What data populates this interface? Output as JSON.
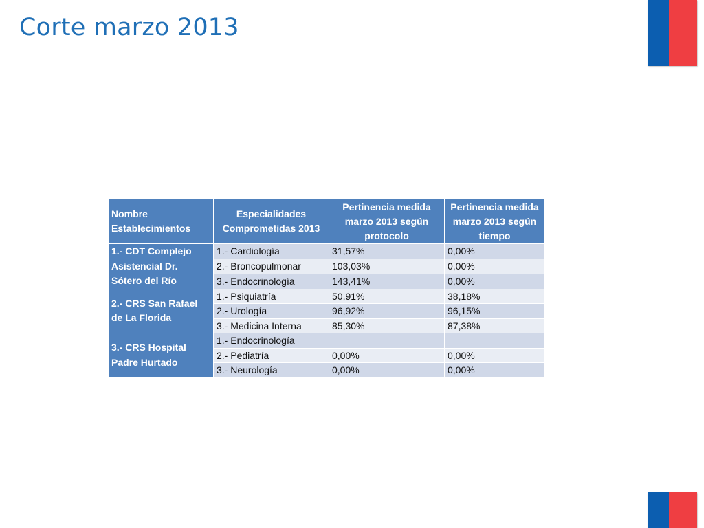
{
  "slide": {
    "title": "Corte marzo 2013"
  },
  "colors": {
    "title": "#1f6fb6",
    "header_bg": "#4f81bd",
    "row_odd": "#d0d8e8",
    "row_even": "#e9edf4",
    "flag_blue": "#0c5eb0",
    "flag_red": "#ef3e42"
  },
  "table": {
    "headers": [
      "Nombre Establecimientos",
      "Especialidades Comprometidas 2013",
      "Pertinencia medida marzo 2013 según protocolo",
      "Pertinencia medida marzo 2013 según tiempo"
    ],
    "groups": [
      {
        "name": "1.- CDT Complejo Asistencial Dr. Sótero del Río",
        "rows": [
          {
            "especialidad": "1.- Cardiología",
            "protocolo": "31,57%",
            "tiempo": "0,00%"
          },
          {
            "especialidad": "2.- Broncopulmonar",
            "protocolo": "103,03%",
            "tiempo": "0,00%"
          },
          {
            "especialidad": "3.- Endocrinología",
            "protocolo": "143,41%",
            "tiempo": "0,00%"
          }
        ]
      },
      {
        "name": "2.- CRS San Rafael de La Florida",
        "rows": [
          {
            "especialidad": "1.- Psiquiatría",
            "protocolo": "50,91%",
            "tiempo": "38,18%"
          },
          {
            "especialidad": "2.- Urología",
            "protocolo": "96,92%",
            "tiempo": "96,15%"
          },
          {
            "especialidad": "3.- Medicina Interna",
            "protocolo": "85,30%",
            "tiempo": "87,38%"
          }
        ]
      },
      {
        "name": "3.- CRS Hospital Padre Hurtado",
        "rows": [
          {
            "especialidad": "1.- Endocrinología",
            "protocolo": "",
            "tiempo": ""
          },
          {
            "especialidad": "2.- Pediatría",
            "protocolo": "0,00%",
            "tiempo": "0,00%"
          },
          {
            "especialidad": "3.- Neurología",
            "protocolo": "0,00%",
            "tiempo": "0,00%"
          }
        ]
      }
    ]
  }
}
